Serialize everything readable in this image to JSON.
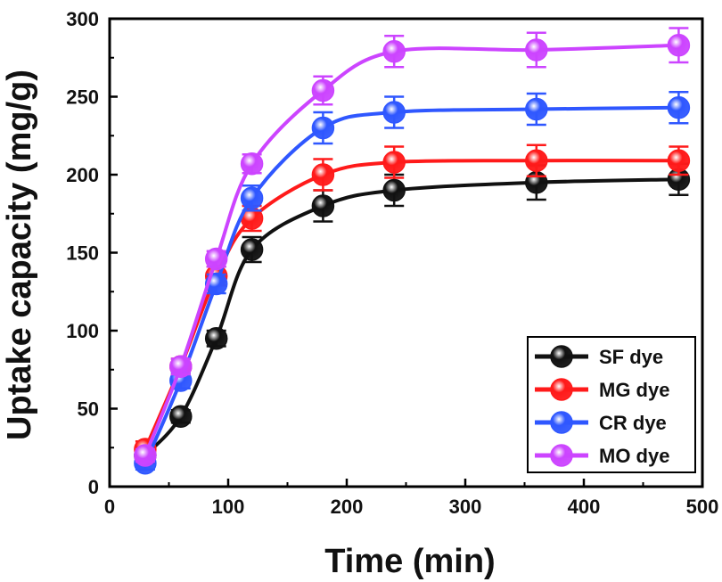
{
  "chart_data": {
    "type": "line",
    "title": "",
    "xlabel": "Time (min)",
    "ylabel": "Uptake capacity (mg/g)",
    "xlim": [
      0,
      500
    ],
    "ylim": [
      0,
      300
    ],
    "x_ticks": [
      "0",
      "100",
      "200",
      "300",
      "400",
      "500"
    ],
    "y_ticks": [
      "0",
      "50",
      "100",
      "150",
      "200",
      "250",
      "300"
    ],
    "grid": false,
    "legend_position": "bottom-right",
    "x": [
      30,
      60,
      90,
      120,
      180,
      240,
      360,
      480
    ],
    "series": [
      {
        "name": "SF dye",
        "color": "#111111",
        "values": [
          20,
          45,
          95,
          152,
          180,
          190,
          195,
          197
        ],
        "error": [
          5,
          4,
          5,
          8,
          10,
          10,
          11,
          10
        ]
      },
      {
        "name": "MG dye",
        "color": "#ff1a1a",
        "values": [
          24,
          77,
          135,
          172,
          200,
          208,
          209,
          209
        ],
        "error": [
          5,
          5,
          6,
          8,
          10,
          10,
          10,
          9
        ]
      },
      {
        "name": "CR dye",
        "color": "#2f57ff",
        "values": [
          15,
          68,
          130,
          185,
          230,
          240,
          242,
          243
        ],
        "error": [
          4,
          5,
          6,
          8,
          10,
          10,
          10,
          10
        ]
      },
      {
        "name": "MO dye",
        "color": "#cc44ff",
        "values": [
          20,
          77,
          146,
          207,
          254,
          279,
          280,
          283
        ],
        "error": [
          4,
          5,
          5,
          6,
          9,
          10,
          11,
          11
        ]
      }
    ]
  }
}
